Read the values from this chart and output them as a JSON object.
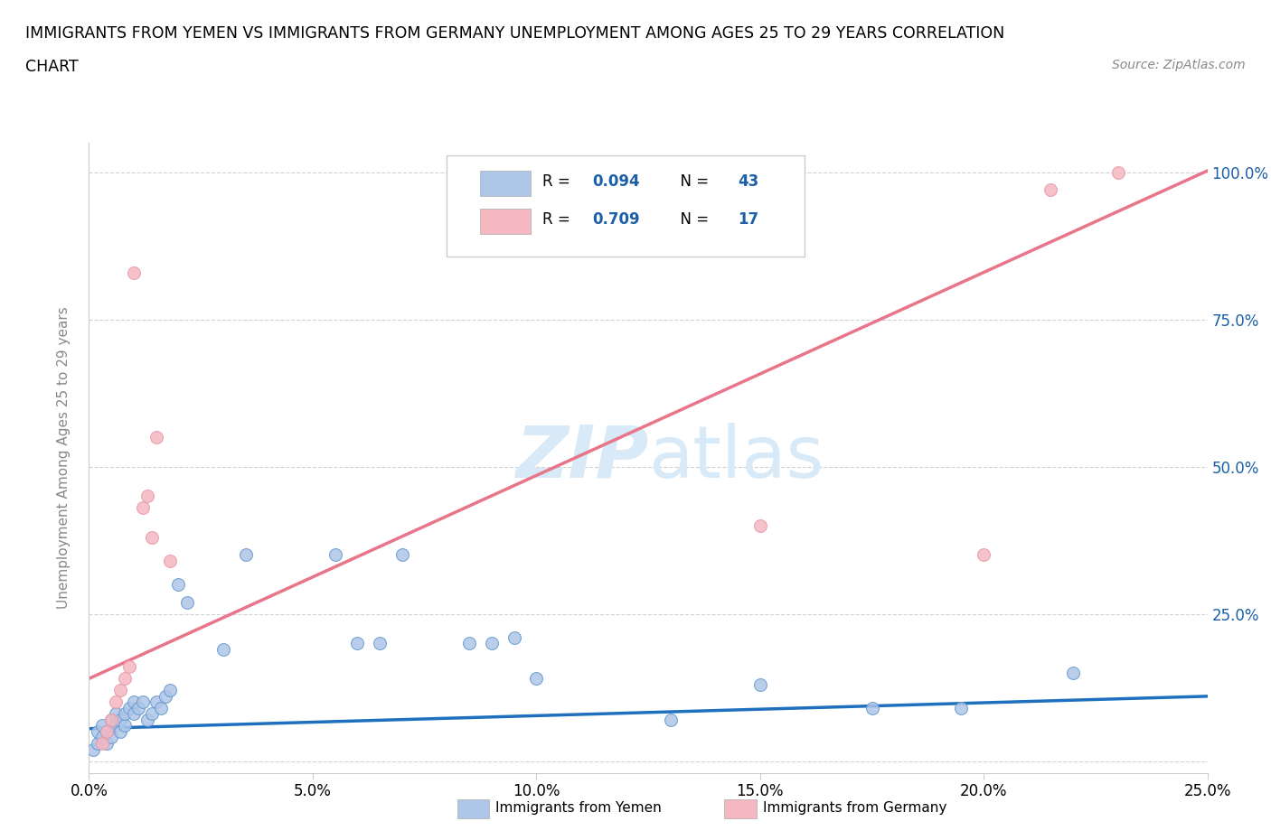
{
  "title_line1": "IMMIGRANTS FROM YEMEN VS IMMIGRANTS FROM GERMANY UNEMPLOYMENT AMONG AGES 25 TO 29 YEARS CORRELATION",
  "title_line2": "CHART",
  "source_text": "Source: ZipAtlas.com",
  "ylabel": "Unemployment Among Ages 25 to 29 years",
  "xlim": [
    0.0,
    0.25
  ],
  "ylim": [
    -0.02,
    1.05
  ],
  "xticks": [
    0.0,
    0.05,
    0.1,
    0.15,
    0.2,
    0.25
  ],
  "yticks": [
    0.0,
    0.25,
    0.5,
    0.75,
    1.0
  ],
  "xtick_labels": [
    "0.0%",
    "5.0%",
    "10.0%",
    "15.0%",
    "20.0%",
    "25.0%"
  ],
  "ytick_labels": [
    "",
    "25.0%",
    "50.0%",
    "75.0%",
    "100.0%"
  ],
  "yemen_color": "#aec6e8",
  "germany_color": "#f4b8c1",
  "yemen_edge_color": "#6699cc",
  "germany_edge_color": "#e899aa",
  "yemen_line_color": "#1f6fbf",
  "germany_line_color": "#e8758a",
  "tick_color": "#1a5fa8",
  "watermark_color": "#d8eaf8",
  "legend_R_color": "#1a5fa8",
  "yemen_R": "0.094",
  "yemen_N": "43",
  "germany_R": "0.709",
  "germany_N": "17",
  "yemen_label": "Immigrants from Yemen",
  "germany_label": "Immigrants from Germany",
  "yemen_line_intercept": 0.055,
  "yemen_line_slope": 0.22,
  "germany_line_intercept": 0.14,
  "germany_line_slope": 3.45,
  "yemen_x": [
    0.001,
    0.002,
    0.002,
    0.003,
    0.003,
    0.004,
    0.004,
    0.005,
    0.005,
    0.006,
    0.006,
    0.007,
    0.007,
    0.008,
    0.008,
    0.009,
    0.01,
    0.01,
    0.011,
    0.012,
    0.013,
    0.014,
    0.015,
    0.016,
    0.017,
    0.018,
    0.02,
    0.022,
    0.03,
    0.035,
    0.055,
    0.06,
    0.065,
    0.07,
    0.085,
    0.09,
    0.095,
    0.1,
    0.13,
    0.15,
    0.175,
    0.195,
    0.22
  ],
  "yemen_y": [
    0.02,
    0.03,
    0.05,
    0.04,
    0.06,
    0.03,
    0.05,
    0.04,
    0.07,
    0.06,
    0.08,
    0.05,
    0.07,
    0.06,
    0.08,
    0.09,
    0.08,
    0.1,
    0.09,
    0.1,
    0.07,
    0.08,
    0.1,
    0.09,
    0.11,
    0.12,
    0.3,
    0.27,
    0.19,
    0.35,
    0.35,
    0.2,
    0.2,
    0.35,
    0.2,
    0.2,
    0.21,
    0.14,
    0.07,
    0.13,
    0.09,
    0.09,
    0.15
  ],
  "germany_x": [
    0.003,
    0.004,
    0.005,
    0.006,
    0.007,
    0.008,
    0.009,
    0.01,
    0.012,
    0.013,
    0.014,
    0.015,
    0.018,
    0.15,
    0.2,
    0.215,
    0.23
  ],
  "germany_y": [
    0.03,
    0.05,
    0.07,
    0.1,
    0.12,
    0.14,
    0.16,
    0.83,
    0.43,
    0.45,
    0.38,
    0.55,
    0.34,
    0.4,
    0.35,
    0.97,
    1.0
  ]
}
